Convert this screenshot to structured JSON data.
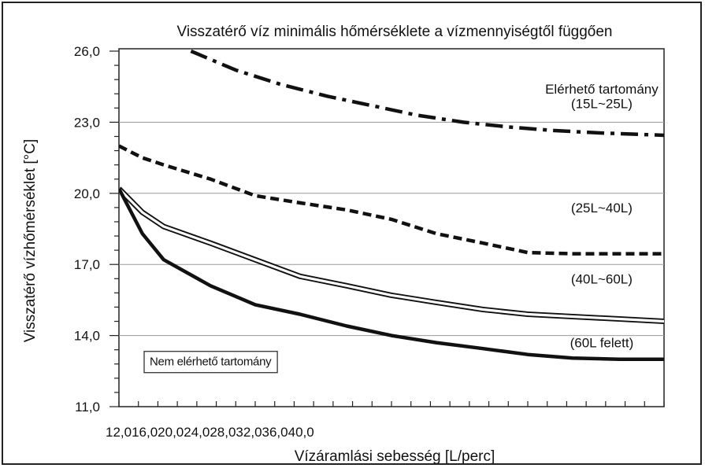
{
  "chart_data": {
    "type": "line",
    "title": "Visszatérő víz minimális hőmérséklete a vízmennyiségtől függően",
    "xlabel": "Vízáramlási sebesség [L/perc]",
    "ylabel": "Visszatérő vízhőmérséklet [°C]",
    "xlim": [
      12.0,
      40.0
    ],
    "ylim": [
      11.0,
      26.0
    ],
    "xtick_label": "12,016,020,024,028,032,036,040,0",
    "yticks": [
      {
        "value": 11.0,
        "label": "11,0"
      },
      {
        "value": 14.0,
        "label": "14,0"
      },
      {
        "value": 17.0,
        "label": "17,0"
      },
      {
        "value": 20.0,
        "label": "20,0"
      },
      {
        "value": 23.0,
        "label": "23,0"
      },
      {
        "value": 26.0,
        "label": "26,0"
      }
    ],
    "grid": true,
    "series": [
      {
        "name": "(15L~25L)",
        "style": "dashdot",
        "x": [
          15.7,
          18,
          20.3,
          22.7,
          25,
          27.3,
          29.7,
          32,
          34.3,
          36.7,
          40
        ],
        "y": [
          26.0,
          25.2,
          24.6,
          24.1,
          23.7,
          23.3,
          23.0,
          22.8,
          22.65,
          22.55,
          22.45
        ]
      },
      {
        "name": "(25L~40L)",
        "style": "dashed",
        "x": [
          12.0,
          13.2,
          14.3,
          16.7,
          19,
          21.3,
          23.7,
          26,
          28.3,
          30.7,
          33,
          35.3,
          37.7,
          40
        ],
        "y": [
          22.0,
          21.5,
          21.2,
          20.6,
          19.9,
          19.6,
          19.3,
          18.9,
          18.3,
          17.9,
          17.5,
          17.45,
          17.45,
          17.45
        ]
      },
      {
        "name": "(40L~60L)",
        "style": "double",
        "x": [
          12.0,
          13.2,
          14.3,
          16.7,
          19,
          21.3,
          23.7,
          26,
          28.3,
          30.7,
          33,
          35.3,
          37.7,
          40
        ],
        "y": [
          20.2,
          19.2,
          18.6,
          17.9,
          17.2,
          16.5,
          16.1,
          15.7,
          15.4,
          15.1,
          14.9,
          14.8,
          14.7,
          14.6
        ]
      },
      {
        "name": "(60L felett)",
        "style": "solid",
        "x": [
          12.0,
          13.2,
          14.3,
          16.7,
          19,
          21.3,
          23.7,
          26,
          28.3,
          30.7,
          33,
          35.3,
          37.7,
          40
        ],
        "y": [
          20.2,
          18.3,
          17.2,
          16.1,
          15.3,
          14.9,
          14.4,
          14.0,
          13.7,
          13.45,
          13.2,
          13.05,
          13.0,
          13.0
        ]
      }
    ],
    "annotations": [
      {
        "text": "Elérhető tartomány",
        "x": 36.8,
        "y": 24.4
      },
      {
        "text": "(15L~25L)",
        "x": 36.8,
        "y": 23.8
      },
      {
        "text": "(25L~40L)",
        "x": 36.8,
        "y": 19.4
      },
      {
        "text": "(40L~60L)",
        "x": 36.8,
        "y": 16.4
      },
      {
        "text": "(60L felett)",
        "x": 36.8,
        "y": 13.7
      },
      {
        "text": "Nem elérhető tartomány",
        "x": 16.7,
        "y": 12.9,
        "boxed": true
      }
    ]
  }
}
